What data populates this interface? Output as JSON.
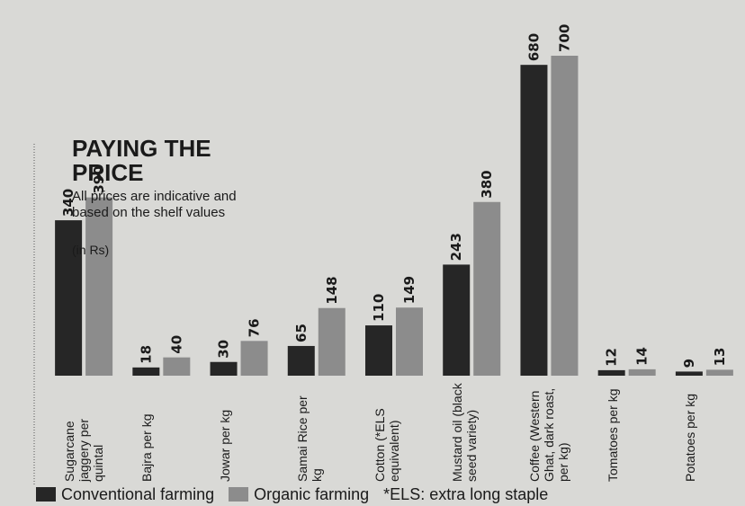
{
  "chart_data": {
    "type": "bar",
    "title": "PAYING THE PRICE",
    "subtitle": "All prices are indicative and based on the shelf values",
    "unit_note": "(in Rs)",
    "note": "*ELS: extra long staple",
    "categories": [
      "Sugarcane jaggery per quintal",
      "Bajra per kg",
      "Jowar per kg",
      "Samai Rice per kg",
      "Cotton (*ELS equivalent)",
      "Mustard oil (black seed variety)",
      "Coffee (Western Ghat, dark roast, per kg)",
      "Tomatoes per kg",
      "Potatoes per kg"
    ],
    "series": [
      {
        "name": "Conventional farming",
        "color": "#262626",
        "values": [
          340,
          18,
          30,
          65,
          110,
          243,
          680,
          12,
          9
        ]
      },
      {
        "name": "Organic farming",
        "color": "#8c8c8c",
        "values": [
          390,
          40,
          76,
          148,
          149,
          380,
          700,
          14,
          13
        ]
      }
    ]
  }
}
